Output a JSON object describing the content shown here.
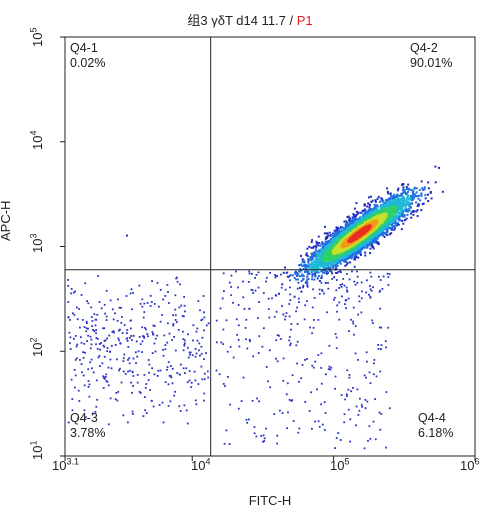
{
  "chart_data": {
    "type": "scatter",
    "title_prefix": "组3 γδT d14 11.7 / ",
    "title_gate": "P1",
    "xlabel": "FITC-H",
    "ylabel": "APC-H",
    "x_scale": "log",
    "y_scale": "log",
    "xlim": [
      1259,
      1000000
    ],
    "ylim": [
      10,
      100000
    ],
    "x_ticks": [
      {
        "base": "10",
        "exp": "3.1"
      },
      {
        "base": "10",
        "exp": "4"
      },
      {
        "base": "10",
        "exp": "5"
      },
      {
        "base": "10",
        "exp": "6"
      }
    ],
    "y_ticks": [
      {
        "base": "10",
        "exp": "1"
      },
      {
        "base": "10",
        "exp": "2"
      },
      {
        "base": "10",
        "exp": "3"
      },
      {
        "base": "10",
        "exp": "4"
      },
      {
        "base": "10",
        "exp": "5"
      }
    ],
    "quadrant_gate": {
      "x": 13500,
      "y": 600
    },
    "quadrants": [
      {
        "id": "q1",
        "name": "Q4-1",
        "percent": "0.02%"
      },
      {
        "id": "q2",
        "name": "Q4-2",
        "percent": "90.01%"
      },
      {
        "id": "q3",
        "name": "Q4-3",
        "percent": "3.78%"
      },
      {
        "id": "q4",
        "name": "Q4-4",
        "percent": "6.18%"
      }
    ],
    "populations": [
      {
        "id": "main",
        "center_x": 150000,
        "center_y": 1350,
        "density": "high"
      },
      {
        "id": "q3-scatter",
        "x_range": [
          1300,
          13000
        ],
        "y_range": [
          20,
          550
        ],
        "density": "low"
      },
      {
        "id": "q4-scatter",
        "x_range": [
          14000,
          250000
        ],
        "y_range": [
          12,
          590
        ],
        "density": "low"
      }
    ],
    "density_colors": [
      "#1f2bbf",
      "#1f6fe0",
      "#1fb8d8",
      "#2fd06a",
      "#c8e02a",
      "#f29a1a",
      "#e83020"
    ]
  }
}
